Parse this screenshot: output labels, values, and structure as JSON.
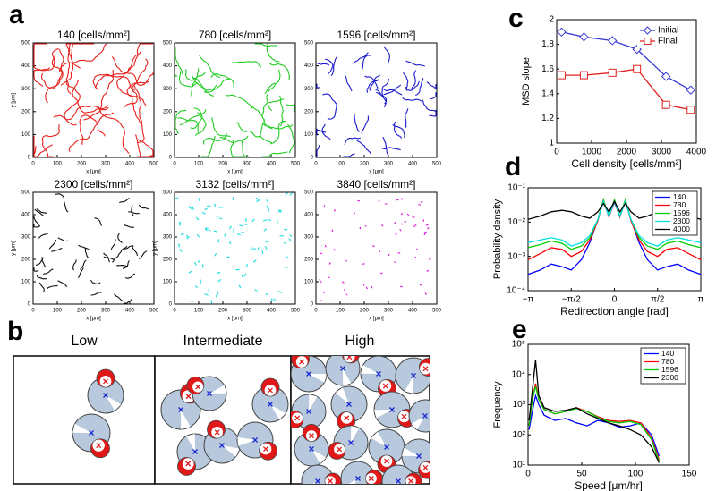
{
  "panel_labels": [
    "a",
    "b",
    "c",
    "d",
    "e"
  ],
  "diagram": {
    "titles": [
      "Low",
      "Intermediate",
      "High"
    ]
  },
  "chart_data": [
    {
      "type": "trajectory",
      "title": "140 [cells/mm²]",
      "color": "#e8221e",
      "xlim": [
        0,
        500
      ],
      "ylim": [
        0,
        500
      ],
      "xticks": [
        0,
        100,
        200,
        300,
        400,
        500
      ],
      "yticks": [
        0,
        100,
        200,
        300,
        400,
        500
      ],
      "xlabel": "x [μm]",
      "ylabel": "y [μm]"
    },
    {
      "type": "trajectory",
      "title": "780 [cells/mm²]",
      "color": "#22cc22",
      "xlim": [
        0,
        500
      ],
      "ylim": [
        0,
        500
      ],
      "xticks": [
        0,
        100,
        200,
        300,
        400,
        500
      ],
      "yticks": [
        0,
        100,
        200,
        300,
        400,
        500
      ],
      "xlabel": "x [μm]"
    },
    {
      "type": "trajectory",
      "title": "1596 [cells/mm²]",
      "color": "#1a1acc",
      "xlim": [
        0,
        500
      ],
      "ylim": [
        0,
        500
      ],
      "xticks": [
        0,
        100,
        200,
        300,
        400,
        500
      ],
      "yticks": [
        0,
        100,
        200,
        300,
        400,
        500
      ],
      "xlabel": "x [μm]"
    },
    {
      "type": "trajectory",
      "title": "2300 [cells/mm²]",
      "color": "#111111",
      "xlim": [
        0,
        500
      ],
      "ylim": [
        0,
        500
      ],
      "xticks": [
        0,
        100,
        200,
        300,
        400,
        500
      ],
      "yticks": [
        0,
        100,
        200,
        300,
        400,
        500
      ],
      "xlabel": "x [μm]",
      "ylabel": "y [μm]"
    },
    {
      "type": "trajectory",
      "title": "3132 [cells/mm²]",
      "color": "#22dddd",
      "xlim": [
        0,
        500
      ],
      "ylim": [
        0,
        500
      ],
      "xticks": [
        0,
        100,
        200,
        300,
        400,
        500
      ],
      "yticks": [
        0,
        100,
        200,
        300,
        400,
        500
      ],
      "xlabel": "x [μm]",
      "ylabel": "y [μm]"
    },
    {
      "type": "trajectory",
      "title": "3840 [cells/mm²]",
      "color": "#dd22dd",
      "xlim": [
        0,
        500
      ],
      "ylim": [
        0,
        500
      ],
      "xticks": [
        0,
        100,
        200,
        300,
        400,
        500
      ],
      "yticks": [
        0,
        100,
        200,
        300,
        400,
        500
      ],
      "xlabel": "x [μm]"
    },
    {
      "type": "line",
      "xlabel": "Cell density [cells/mm²]",
      "ylabel": "MSD slope",
      "x": [
        140,
        780,
        1596,
        2300,
        3132,
        3840
      ],
      "series": [
        {
          "name": "Initial",
          "color": "#3b3bd6",
          "marker": "diamond",
          "values": [
            1.9,
            1.86,
            1.83,
            1.76,
            1.54,
            1.43
          ]
        },
        {
          "name": "Final",
          "color": "#e02020",
          "marker": "square",
          "values": [
            1.55,
            1.55,
            1.57,
            1.6,
            1.31,
            1.27
          ]
        }
      ],
      "xlim": [
        0,
        4000
      ],
      "xticks": [
        0,
        1000,
        2000,
        3000,
        4000
      ],
      "ylim": [
        1,
        2
      ],
      "yticks": [
        1,
        1.2,
        1.4,
        1.6,
        1.8,
        2
      ],
      "legend": "upper-right"
    },
    {
      "type": "line",
      "xlabel": "Redirection angle [rad]",
      "ylabel": "Probability density",
      "ylog": true,
      "x": [
        -3.14,
        -2.7,
        -2.3,
        -1.9,
        -1.57,
        -1.2,
        -0.9,
        -0.6,
        -0.4,
        -0.2,
        0,
        0.2,
        0.4,
        0.6,
        0.9,
        1.2,
        1.57,
        1.9,
        2.3,
        2.7,
        3.14
      ],
      "series": [
        {
          "name": "140",
          "color": "#0000ff",
          "values": [
            0.0003,
            0.0004,
            0.0006,
            0.0005,
            0.0004,
            0.0008,
            0.0025,
            0.012,
            0.04,
            0.015,
            0.038,
            0.015,
            0.04,
            0.012,
            0.0025,
            0.0008,
            0.0004,
            0.0005,
            0.0006,
            0.0004,
            0.0003
          ]
        },
        {
          "name": "780",
          "color": "#ff0000",
          "values": [
            0.0008,
            0.0012,
            0.0018,
            0.0016,
            0.001,
            0.0014,
            0.003,
            0.011,
            0.045,
            0.014,
            0.04,
            0.014,
            0.045,
            0.011,
            0.003,
            0.0014,
            0.001,
            0.0016,
            0.0018,
            0.0012,
            0.0008
          ]
        },
        {
          "name": "1596",
          "color": "#00cc00",
          "values": [
            0.0018,
            0.0022,
            0.0028,
            0.0024,
            0.0016,
            0.002,
            0.0035,
            0.012,
            0.045,
            0.015,
            0.045,
            0.015,
            0.045,
            0.012,
            0.0035,
            0.002,
            0.0016,
            0.0024,
            0.0028,
            0.0022,
            0.0018
          ]
        },
        {
          "name": "2300",
          "color": "#00e0e0",
          "values": [
            0.0025,
            0.003,
            0.0035,
            0.003,
            0.002,
            0.0025,
            0.004,
            0.012,
            0.04,
            0.015,
            0.04,
            0.015,
            0.04,
            0.012,
            0.004,
            0.0025,
            0.002,
            0.003,
            0.0035,
            0.003,
            0.0025
          ]
        },
        {
          "name": "4000",
          "color": "#000000",
          "values": [
            0.012,
            0.015,
            0.02,
            0.022,
            0.02,
            0.015,
            0.013,
            0.02,
            0.035,
            0.02,
            0.04,
            0.02,
            0.035,
            0.02,
            0.013,
            0.015,
            0.02,
            0.022,
            0.02,
            0.015,
            0.012
          ]
        }
      ],
      "xlim": [
        -3.1416,
        3.1416
      ],
      "xticks": [
        {
          "value": -3.1416,
          "label": "−π"
        },
        {
          "value": -1.5708,
          "label": "−π/2"
        },
        0,
        {
          "value": 1.5708,
          "label": "π/2"
        },
        {
          "value": 3.1416,
          "label": "π"
        }
      ],
      "ylim": [
        0.0001,
        0.1
      ],
      "yticks": [
        {
          "value": 0.0001,
          "label": "10⁻⁴"
        },
        {
          "value": 0.001,
          "label": "10⁻³"
        },
        {
          "value": 0.01,
          "label": "10⁻²"
        },
        {
          "value": 0.1,
          "label": "10⁻¹"
        }
      ],
      "legend": "upper-right"
    },
    {
      "type": "line",
      "xlabel": "Speed [μm/hr]",
      "ylabel": "Frequency",
      "ylog": true,
      "x": [
        1,
        4,
        7,
        10,
        15,
        25,
        35,
        45,
        55,
        65,
        75,
        85,
        95,
        105,
        115,
        122
      ],
      "series": [
        {
          "name": "140",
          "color": "#0000ff",
          "values": [
            150,
            600,
            2000,
            1000,
            450,
            300,
            350,
            250,
            200,
            300,
            250,
            180,
            200,
            250,
            100,
            20
          ]
        },
        {
          "name": "780",
          "color": "#ff0000",
          "values": [
            200,
            1500,
            5000,
            1500,
            700,
            500,
            600,
            800,
            600,
            400,
            300,
            280,
            300,
            250,
            80,
            15
          ]
        },
        {
          "name": "1596",
          "color": "#00cc00",
          "values": [
            200,
            1500,
            4000,
            1500,
            700,
            500,
            600,
            750,
            600,
            380,
            280,
            250,
            280,
            220,
            70,
            13
          ]
        },
        {
          "name": "2300",
          "color": "#000000",
          "values": [
            300,
            3000,
            30000,
            2000,
            800,
            600,
            650,
            800,
            500,
            350,
            250,
            200,
            150,
            100,
            40,
            12
          ]
        }
      ],
      "xlim": [
        0,
        150
      ],
      "xticks": [
        0,
        50,
        100,
        150
      ],
      "ylim": [
        10,
        100000
      ],
      "yticks": [
        {
          "value": 10,
          "label": "10¹"
        },
        {
          "value": 100,
          "label": "10²"
        },
        {
          "value": 1000,
          "label": "10³"
        },
        {
          "value": 10000,
          "label": "10⁴"
        },
        {
          "value": 100000,
          "label": "10⁵"
        }
      ],
      "legend": "upper-right"
    }
  ]
}
